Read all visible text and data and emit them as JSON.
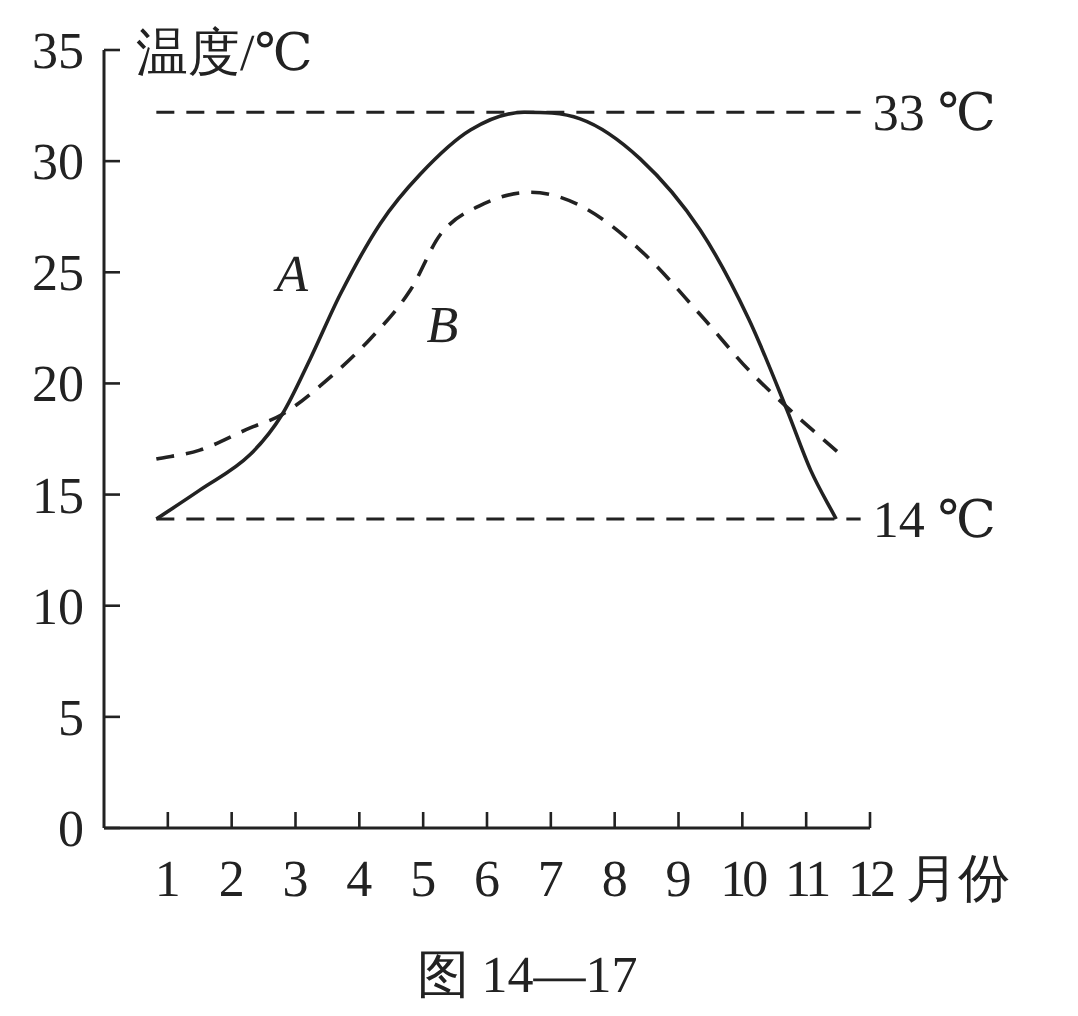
{
  "chart_data": {
    "type": "line",
    "xlabel": "月份",
    "ylabel": "温度/℃",
    "xlim": [
      0,
      12
    ],
    "ylim": [
      0,
      35
    ],
    "xticks": [
      1,
      2,
      3,
      4,
      5,
      6,
      7,
      8,
      9,
      10,
      11,
      12
    ],
    "yticks": [
      0,
      5,
      10,
      15,
      20,
      25,
      30,
      35
    ],
    "series": [
      {
        "name": "A",
        "color": "#222222",
        "line_style": "solid",
        "x": [
          0.82,
          1.5,
          2.29,
          2.79,
          3.23,
          3.7,
          4.33,
          4.95,
          5.74,
          6.58,
          7.46,
          8.4,
          9.34,
          10.1,
          10.7,
          11.07,
          11.47
        ],
        "values": [
          13.9,
          15.2,
          16.8,
          18.6,
          21.1,
          24.0,
          27.2,
          29.4,
          31.4,
          32.2,
          31.9,
          30.1,
          26.9,
          22.9,
          18.8,
          16.1,
          13.9
        ]
      },
      {
        "name": "B",
        "color": "#222222",
        "line_style": "dashed",
        "x": [
          0.82,
          1.5,
          2.29,
          2.79,
          3.39,
          4.17,
          4.8,
          5.27,
          5.89,
          6.68,
          7.46,
          8.4,
          9.34,
          10.1,
          10.75,
          11.54
        ],
        "values": [
          16.6,
          17.0,
          18.0,
          18.6,
          19.9,
          22.0,
          24.2,
          26.7,
          28.0,
          28.6,
          28.0,
          26.0,
          23.1,
          20.6,
          18.8,
          16.8
        ]
      }
    ],
    "ref_lines": [
      {
        "axis": "y",
        "value": 32.2,
        "label": "33 ℃",
        "line_style": "dashed",
        "color": "#222222"
      },
      {
        "axis": "y",
        "value": 13.9,
        "label": "14 ℃",
        "line_style": "dashed",
        "color": "#222222"
      }
    ],
    "annotations": [
      "图 14—17"
    ]
  }
}
